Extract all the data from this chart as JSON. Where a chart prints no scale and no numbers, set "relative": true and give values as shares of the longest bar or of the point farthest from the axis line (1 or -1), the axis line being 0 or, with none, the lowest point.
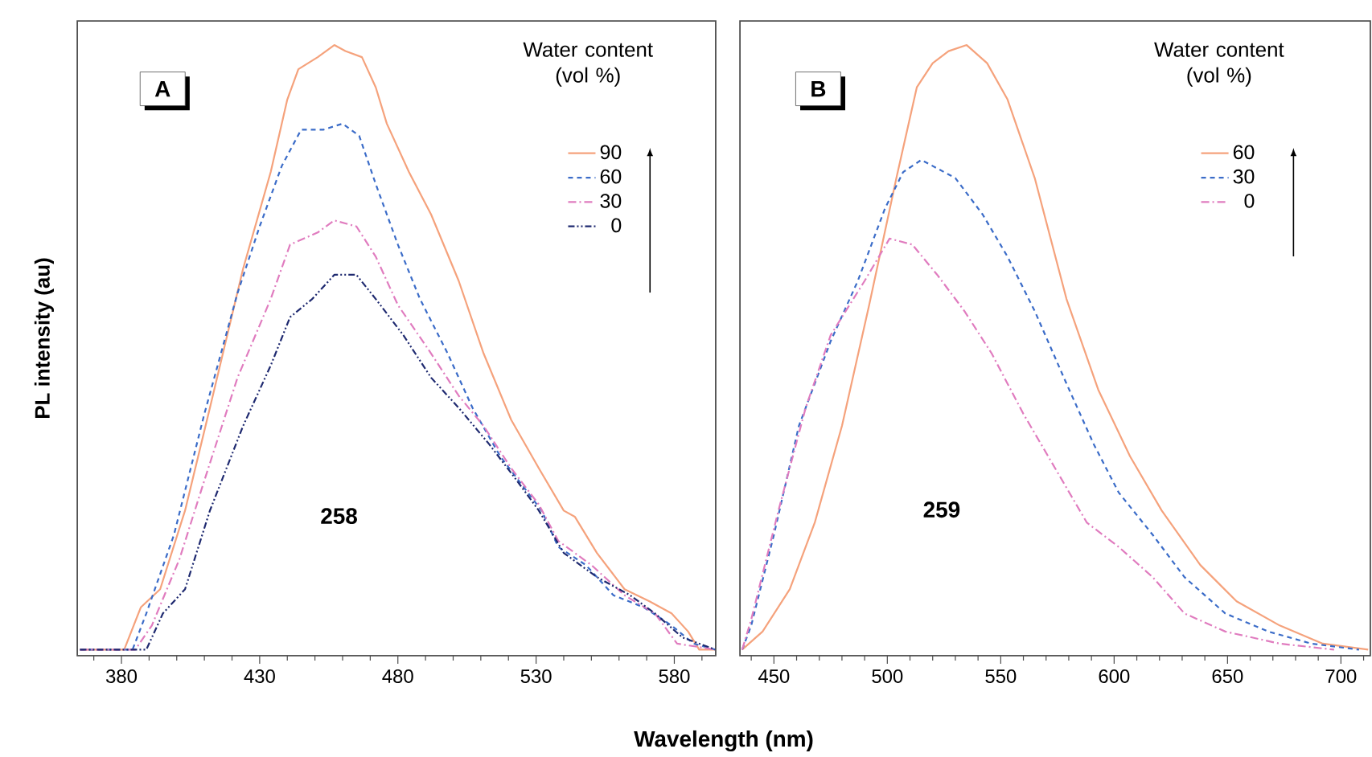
{
  "chart_data": [
    {
      "type": "line",
      "relative": true,
      "ylabel": "PL intensity (au)",
      "xlabel": "Wavelength (nm)",
      "legend_title": "Water content (vol %)",
      "legend": "top right",
      "annotations": [
        "A",
        "258"
      ],
      "xlim": [
        364,
        595
      ],
      "xticks": [
        {
          "value": 370,
          "label": null
        },
        380,
        {
          "value": 390,
          "label": null
        },
        {
          "value": 400,
          "label": null
        },
        {
          "value": 410,
          "label": null
        },
        {
          "value": 420,
          "label": null
        },
        430,
        {
          "value": 440,
          "label": null
        },
        {
          "value": 450,
          "label": null
        },
        {
          "value": 460,
          "label": null
        },
        {
          "value": 470,
          "label": null
        },
        480,
        {
          "value": 490,
          "label": null
        },
        {
          "value": 500,
          "label": null
        },
        {
          "value": 510,
          "label": null
        },
        {
          "value": 520,
          "label": null
        },
        530,
        {
          "value": 540,
          "label": null
        },
        {
          "value": 550,
          "label": null
        },
        {
          "value": 560,
          "label": null
        },
        {
          "value": 570,
          "label": null
        },
        580,
        {
          "value": 590,
          "label": null
        }
      ],
      "series": [
        {
          "name": "90",
          "color": "#f5a27c",
          "line_style": "solid",
          "x": [
            365,
            381,
            387,
            394,
            403,
            412,
            424,
            434,
            440,
            444,
            451,
            457,
            461,
            467,
            472,
            476,
            484,
            492,
            502,
            511,
            521,
            531,
            540,
            544,
            552,
            562,
            571,
            579,
            585,
            589,
            595
          ],
          "values": [
            0,
            0,
            0.07,
            0.1,
            0.23,
            0.4,
            0.63,
            0.79,
            0.91,
            0.96,
            0.98,
            1.0,
            0.99,
            0.98,
            0.93,
            0.87,
            0.79,
            0.72,
            0.61,
            0.49,
            0.38,
            0.3,
            0.23,
            0.22,
            0.16,
            0.1,
            0.08,
            0.06,
            0.03,
            0,
            0
          ]
        },
        {
          "name": "60",
          "color": "#3b6cc8",
          "line_style": "dashed",
          "x": [
            365,
            384,
            389,
            399,
            410,
            422,
            430,
            438,
            445,
            453,
            460,
            466,
            472,
            480,
            488,
            498,
            507,
            517,
            527,
            532,
            538,
            548,
            558,
            569,
            579,
            587,
            595
          ],
          "values": [
            0,
            0,
            0.06,
            0.19,
            0.39,
            0.59,
            0.7,
            0.8,
            0.86,
            0.86,
            0.87,
            0.85,
            0.77,
            0.67,
            0.58,
            0.49,
            0.4,
            0.32,
            0.26,
            0.23,
            0.17,
            0.14,
            0.09,
            0.07,
            0.04,
            0.01,
            0
          ]
        },
        {
          "name": "30",
          "color": "#e07cbf",
          "line_style": "dashdot",
          "x": [
            365,
            385,
            391,
            401,
            410,
            422,
            434,
            441,
            451,
            457,
            465,
            472,
            480,
            492,
            502,
            511,
            521,
            531,
            538,
            550,
            562,
            573,
            581,
            595
          ],
          "values": [
            0,
            0,
            0.04,
            0.15,
            0.28,
            0.45,
            0.58,
            0.67,
            0.69,
            0.71,
            0.7,
            0.65,
            0.57,
            0.49,
            0.42,
            0.37,
            0.3,
            0.24,
            0.18,
            0.14,
            0.09,
            0.06,
            0.01,
            0
          ]
        },
        {
          "name": "0",
          "color": "#1f2a70",
          "line_style": "dashdotdot",
          "x": [
            365,
            389,
            395,
            403,
            412,
            424,
            434,
            441,
            449,
            457,
            465,
            472,
            482,
            492,
            502,
            513,
            523,
            531,
            540,
            552,
            564,
            573,
            583,
            595
          ],
          "values": [
            0,
            0,
            0.06,
            0.1,
            0.23,
            0.37,
            0.47,
            0.55,
            0.58,
            0.62,
            0.62,
            0.58,
            0.52,
            0.45,
            0.4,
            0.34,
            0.28,
            0.23,
            0.16,
            0.12,
            0.09,
            0.06,
            0.02,
            0
          ]
        }
      ]
    },
    {
      "type": "line",
      "relative": true,
      "legend_title": "Water content (vol %)",
      "legend": "top right",
      "annotations": [
        "B",
        "259"
      ],
      "xlim": [
        435,
        713
      ],
      "xticks": [
        {
          "value": 440,
          "label": null
        },
        450,
        {
          "value": 460,
          "label": null
        },
        {
          "value": 470,
          "label": null
        },
        {
          "value": 480,
          "label": null
        },
        {
          "value": 490,
          "label": null
        },
        500,
        {
          "value": 510,
          "label": null
        },
        {
          "value": 520,
          "label": null
        },
        {
          "value": 530,
          "label": null
        },
        {
          "value": 540,
          "label": null
        },
        550,
        {
          "value": 560,
          "label": null
        },
        {
          "value": 570,
          "label": null
        },
        {
          "value": 580,
          "label": null
        },
        {
          "value": 590,
          "label": null
        },
        600,
        {
          "value": 610,
          "label": null
        },
        {
          "value": 620,
          "label": null
        },
        {
          "value": 630,
          "label": null
        },
        {
          "value": 640,
          "label": null
        },
        650,
        {
          "value": 660,
          "label": null
        },
        {
          "value": 670,
          "label": null
        },
        {
          "value": 680,
          "label": null
        },
        {
          "value": 690,
          "label": null
        },
        700,
        {
          "value": 710,
          "label": null
        }
      ],
      "series": [
        {
          "name": "60",
          "color": "#f5a27c",
          "line_style": "solid",
          "x": [
            436,
            445,
            457,
            468,
            480,
            492,
            504,
            513,
            520,
            527,
            535,
            544,
            553,
            565,
            579,
            593,
            607,
            621,
            638,
            654,
            673,
            692,
            712
          ],
          "values": [
            0,
            0.03,
            0.1,
            0.21,
            0.37,
            0.57,
            0.78,
            0.93,
            0.97,
            0.99,
            1.0,
            0.97,
            0.91,
            0.78,
            0.58,
            0.43,
            0.32,
            0.23,
            0.14,
            0.08,
            0.04,
            0.01,
            0
          ]
        },
        {
          "name": "30",
          "color": "#3b6cc8",
          "line_style": "dashed",
          "x": [
            436,
            440,
            450,
            461,
            475,
            487,
            499,
            507,
            515,
            530,
            542,
            553,
            565,
            579,
            591,
            602,
            617,
            631,
            649,
            668,
            687,
            708
          ],
          "values": [
            0,
            0.04,
            0.19,
            0.37,
            0.51,
            0.61,
            0.73,
            0.79,
            0.81,
            0.78,
            0.72,
            0.65,
            0.56,
            0.44,
            0.34,
            0.26,
            0.19,
            0.12,
            0.06,
            0.03,
            0.01,
            0
          ]
        },
        {
          "name": "0",
          "color": "#e07cbf",
          "line_style": "dashdot",
          "x": [
            436,
            440,
            452,
            464,
            475,
            490,
            501,
            511,
            522,
            534,
            546,
            560,
            574,
            588,
            602,
            617,
            631,
            649,
            673,
            697
          ],
          "values": [
            0,
            0.05,
            0.23,
            0.4,
            0.52,
            0.61,
            0.68,
            0.67,
            0.62,
            0.56,
            0.49,
            0.39,
            0.3,
            0.21,
            0.17,
            0.12,
            0.06,
            0.03,
            0.01,
            0
          ]
        }
      ]
    }
  ]
}
